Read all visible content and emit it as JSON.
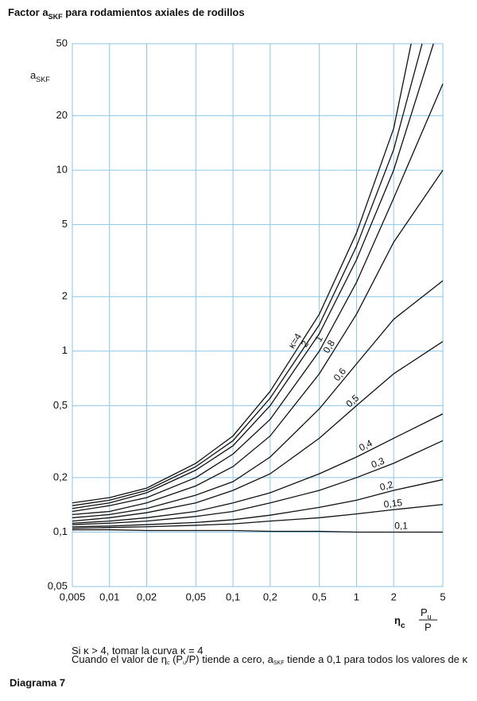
{
  "chart_data": {
    "type": "line",
    "title": [
      "Factor a",
      "SKF",
      " para rodamientos axiales de rodillos"
    ],
    "ylabel": [
      "a",
      "SKF"
    ],
    "xlabel": {
      "symbol": [
        "η",
        "c"
      ],
      "numerator": [
        "P",
        "u"
      ],
      "denominator": "P"
    },
    "log_x": true,
    "log_y": true,
    "grid": true,
    "color": "#111111",
    "grid_color": "#8cc6e6",
    "xlim": [
      0.005,
      5
    ],
    "ylim": [
      0.05,
      50
    ],
    "xticks": [
      {
        "value": 0.005,
        "label": "0,005"
      },
      {
        "value": 0.01,
        "label": "0,01"
      },
      {
        "value": 0.02,
        "label": "0,02"
      },
      {
        "value": 0.05,
        "label": "0,05"
      },
      {
        "value": 0.1,
        "label": "0,1"
      },
      {
        "value": 0.2,
        "label": "0,2"
      },
      {
        "value": 0.5,
        "label": "0,5"
      },
      1,
      2,
      5
    ],
    "yticks": [
      {
        "value": 0.05,
        "label": "0,05"
      },
      {
        "value": 0.1,
        "label": "0,1"
      },
      {
        "value": 0.2,
        "label": "0,2"
      },
      {
        "value": 0.5,
        "label": "0,5"
      },
      1,
      2,
      5,
      10,
      20,
      50
    ],
    "series": [
      {
        "name": "κ=4",
        "x": [
          0.005,
          0.01,
          0.02,
          0.05,
          0.1,
          0.2,
          0.5,
          1,
          2,
          2.77
        ],
        "values": [
          0.145,
          0.155,
          0.175,
          0.24,
          0.34,
          0.6,
          1.6,
          4.5,
          17,
          50
        ]
      },
      {
        "name": null,
        "x": [
          0.005,
          0.01,
          0.02,
          0.05,
          0.1,
          0.2,
          0.5,
          1,
          2,
          3.4
        ],
        "values": [
          0.14,
          0.15,
          0.17,
          0.23,
          0.32,
          0.55,
          1.4,
          3.8,
          13,
          50
        ]
      },
      {
        "name": "2",
        "x": [
          0.005,
          0.01,
          0.02,
          0.05,
          0.1,
          0.2,
          0.5,
          1,
          2,
          4.2
        ],
        "values": [
          0.135,
          0.145,
          0.165,
          0.22,
          0.3,
          0.5,
          1.25,
          3.2,
          10,
          50
        ]
      },
      {
        "name": "1",
        "x": [
          0.005,
          0.01,
          0.02,
          0.05,
          0.1,
          0.2,
          0.5,
          1,
          2,
          5
        ],
        "values": [
          0.13,
          0.14,
          0.155,
          0.2,
          0.27,
          0.42,
          1.0,
          2.4,
          7,
          30
        ]
      },
      {
        "name": "0,8",
        "x": [
          0.005,
          0.01,
          0.02,
          0.05,
          0.1,
          0.2,
          0.5,
          1,
          2,
          5
        ],
        "values": [
          0.125,
          0.13,
          0.145,
          0.18,
          0.23,
          0.34,
          0.75,
          1.6,
          4,
          10
        ]
      },
      {
        "name": "0,6",
        "x": [
          0.005,
          0.01,
          0.02,
          0.05,
          0.1,
          0.2,
          0.5,
          1,
          2,
          5
        ],
        "values": [
          0.12,
          0.125,
          0.135,
          0.16,
          0.19,
          0.26,
          0.48,
          0.85,
          1.5,
          2.45
        ]
      },
      {
        "name": "0,5",
        "x": [
          0.005,
          0.01,
          0.02,
          0.05,
          0.1,
          0.2,
          0.5,
          1,
          2,
          5
        ],
        "values": [
          0.115,
          0.12,
          0.128,
          0.145,
          0.17,
          0.21,
          0.33,
          0.5,
          0.75,
          1.13
        ]
      },
      {
        "name": "0,4",
        "x": [
          0.005,
          0.01,
          0.02,
          0.05,
          0.1,
          0.2,
          0.5,
          1,
          2,
          5
        ],
        "values": [
          0.112,
          0.115,
          0.12,
          0.13,
          0.145,
          0.165,
          0.21,
          0.26,
          0.33,
          0.45
        ]
      },
      {
        "name": "0,3",
        "x": [
          0.005,
          0.01,
          0.02,
          0.05,
          0.1,
          0.2,
          0.5,
          1,
          2,
          5
        ],
        "values": [
          0.11,
          0.112,
          0.115,
          0.122,
          0.13,
          0.145,
          0.17,
          0.2,
          0.24,
          0.32
        ]
      },
      {
        "name": "0,2",
        "x": [
          0.005,
          0.01,
          0.02,
          0.05,
          0.1,
          0.2,
          0.5,
          1,
          2,
          5
        ],
        "values": [
          0.107,
          0.108,
          0.11,
          0.113,
          0.117,
          0.124,
          0.137,
          0.15,
          0.17,
          0.195
        ]
      },
      {
        "name": "0,15",
        "x": [
          0.005,
          0.01,
          0.02,
          0.05,
          0.1,
          0.2,
          0.5,
          1,
          2,
          5
        ],
        "values": [
          0.105,
          0.106,
          0.107,
          0.109,
          0.111,
          0.115,
          0.12,
          0.126,
          0.133,
          0.142
        ]
      },
      {
        "name": "0,1",
        "x": [
          0.005,
          0.01,
          0.02,
          0.05,
          0.1,
          0.2,
          0.5,
          1,
          2,
          5
        ],
        "values": [
          0.103,
          0.103,
          0.102,
          0.102,
          0.102,
          0.101,
          0.101,
          0.1,
          0.1,
          0.1
        ]
      }
    ],
    "notes": [
      [
        "Si κ > 4, tomar la curva κ = 4"
      ],
      [
        "Cuando el valor de η",
        "c",
        " (P",
        "u",
        "/P) tiende a cero, a",
        "SKF",
        " tiende a 0,1 para todos los valores de κ"
      ]
    ],
    "footer": "Diagrama 7"
  }
}
